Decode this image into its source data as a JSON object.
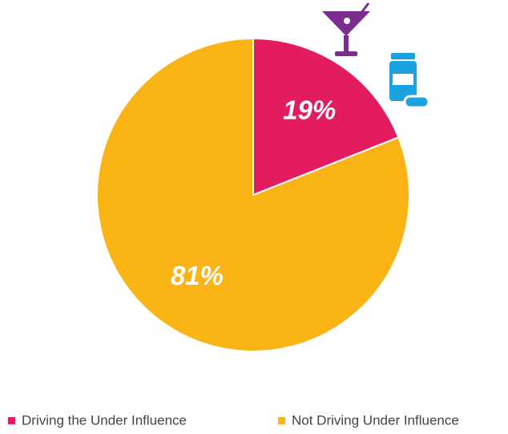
{
  "chart_data": {
    "type": "pie",
    "categories": [
      "Driving the Under Influence",
      "Not Driving Under Influence"
    ],
    "values": [
      19,
      81
    ],
    "value_labels": [
      "19%",
      "81%"
    ],
    "colors": [
      "#e31c5f",
      "#fbb415"
    ],
    "legend": "bottom"
  }
}
